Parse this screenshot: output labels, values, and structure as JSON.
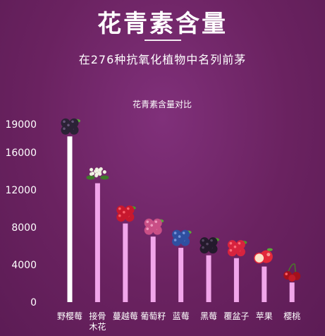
{
  "header": {
    "title": "花青素含量",
    "subtitle": "在276种抗氧化植物中名列前茅"
  },
  "colors": {
    "background": "#6e2563",
    "first_bar": "#ffffff",
    "bar": "#f1a6ea",
    "text": "#ffffff"
  },
  "chart_data": {
    "type": "bar",
    "title": "花青素含量对比",
    "categories": [
      "野樱莓",
      "接骨木花",
      "蔓越莓",
      "葡萄籽",
      "蓝莓",
      "黑莓",
      "覆盆子",
      "苹果",
      "樱桃"
    ],
    "category_lines": [
      [
        "野樱莓"
      ],
      [
        "接骨",
        "木花"
      ],
      [
        "蔓越莓"
      ],
      [
        "葡萄籽"
      ],
      [
        "蓝莓"
      ],
      [
        "黑莓"
      ],
      [
        "覆盆子"
      ],
      [
        "苹果"
      ],
      [
        "樱桃"
      ]
    ],
    "values": [
      17700,
      12700,
      8400,
      7000,
      5800,
      5000,
      4700,
      3800,
      2100
    ],
    "ylim": [
      0,
      19000
    ],
    "yticks": [
      0,
      4000,
      8000,
      12000,
      16000,
      19000
    ],
    "fruit_icons": [
      "aronia-berries-icon",
      "elderflower-icon",
      "cranberries-icon",
      "grapes-icon",
      "blueberries-icon",
      "blackberries-icon",
      "raspberries-icon",
      "apple-icon",
      "cherries-icon"
    ],
    "grid": false,
    "legend": "none"
  }
}
